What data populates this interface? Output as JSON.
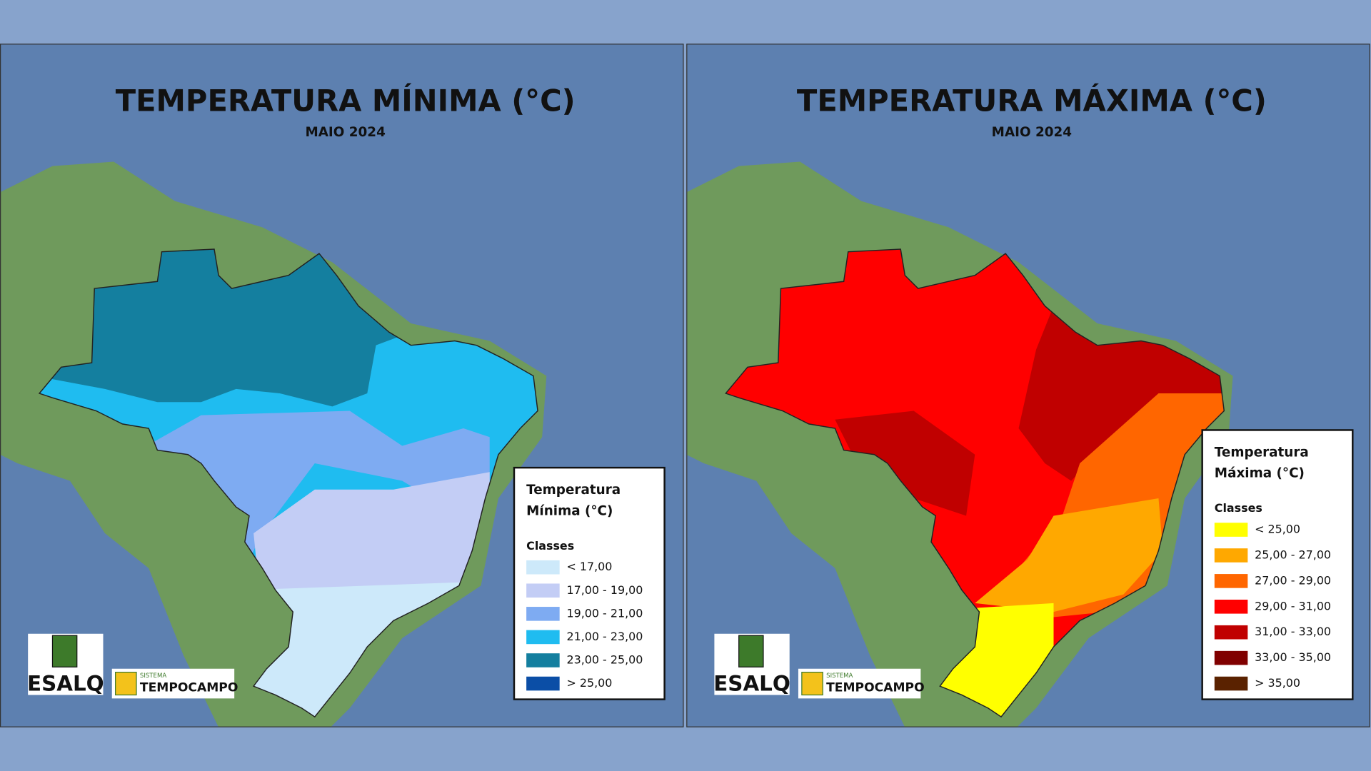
{
  "maps": [
    {
      "title": "TEMPERATURA MÍNIMA (°C)",
      "subtitle": "MAIO 2024",
      "legend": {
        "title_lines": [
          "Temperatura",
          "Mínima (°C)"
        ],
        "heading": "Classes",
        "classes": [
          {
            "label": "< 17,00",
            "color": "#cde9fa"
          },
          {
            "label": "17,00 - 19,00",
            "color": "#c3cdf5"
          },
          {
            "label": "19,00 - 21,00",
            "color": "#7eabf2"
          },
          {
            "label": "21,00 - 23,00",
            "color": "#1fbcf0"
          },
          {
            "label": "23,00 - 25,00",
            "color": "#147f9f"
          },
          {
            "label": "> 25,00",
            "color": "#0b4ea6"
          }
        ]
      }
    },
    {
      "title": "TEMPERATURA MÁXIMA (°C)",
      "subtitle": "MAIO 2024",
      "legend": {
        "title_lines": [
          "Temperatura",
          "Máxima (°C)"
        ],
        "heading": "Classes",
        "classes": [
          {
            "label": "< 25,00",
            "color": "#ffff00"
          },
          {
            "label": "25,00 - 27,00",
            "color": "#ffa800"
          },
          {
            "label": "27,00 - 29,00",
            "color": "#ff6600"
          },
          {
            "label": "29,00 - 31,00",
            "color": "#ff0000"
          },
          {
            "label": "31,00 - 33,00",
            "color": "#c00000"
          },
          {
            "label": "33,00 - 35,00",
            "color": "#800000"
          },
          {
            "label": "> 35,00",
            "color": "#5a2200"
          }
        ]
      }
    }
  ],
  "logos": {
    "esalq": "ESALQ",
    "system": "SISTEMA",
    "brand": "TEMPOCAMPO"
  }
}
